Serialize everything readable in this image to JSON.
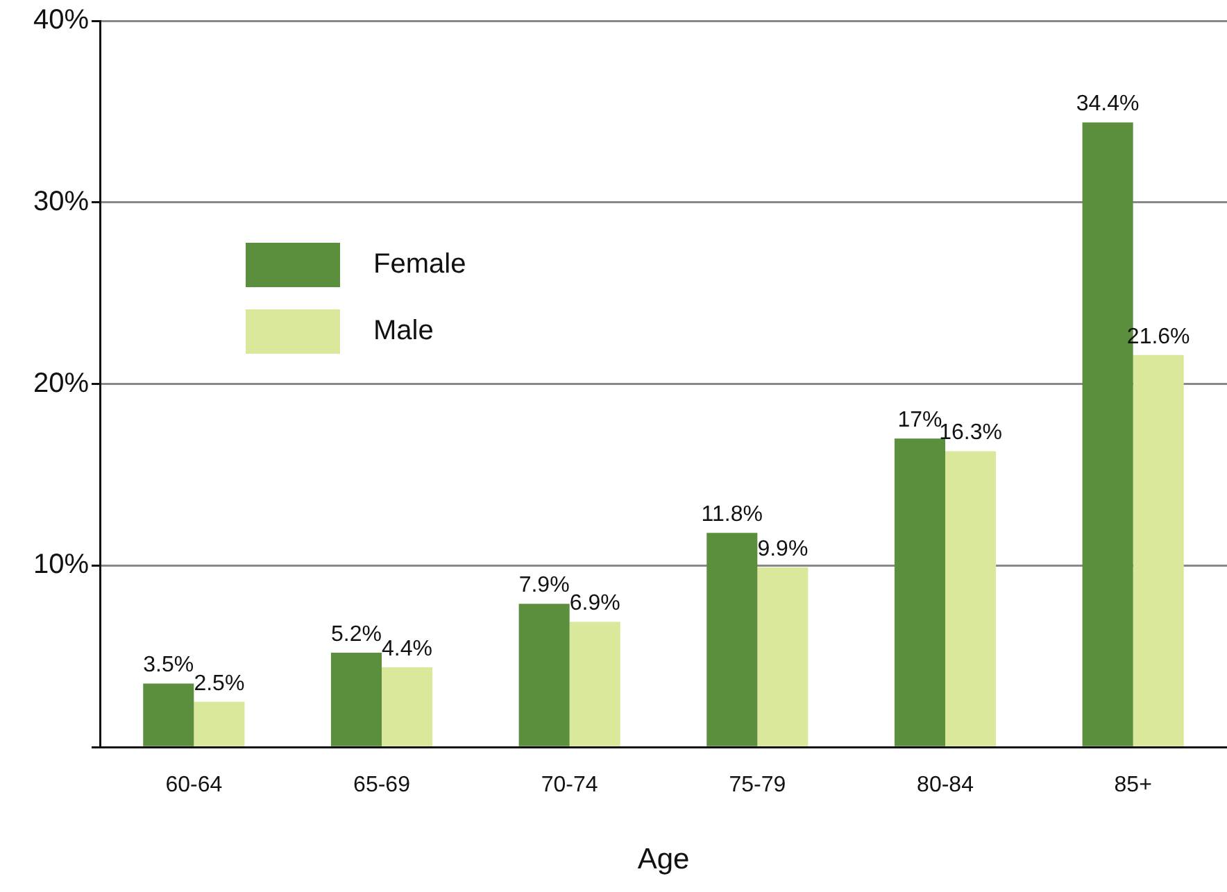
{
  "chart_data": {
    "type": "bar",
    "xlabel": "Age",
    "categories": [
      "60-64",
      "65-69",
      "70-74",
      "75-79",
      "80-84",
      "85+"
    ],
    "series": [
      {
        "name": "Female",
        "color": "#5b8f3e",
        "values": [
          3.5,
          5.2,
          7.9,
          11.8,
          17,
          34.4
        ],
        "value_labels": [
          "3.5%",
          "5.2%",
          "7.9%",
          "11.8%",
          "17%",
          "34.4%"
        ]
      },
      {
        "name": "Male",
        "color": "#d9e89a",
        "values": [
          2.5,
          4.4,
          6.9,
          9.9,
          16.3,
          21.6
        ],
        "value_labels": [
          "2.5%",
          "4.4%",
          "6.9%",
          "9.9%",
          "16.3%",
          "21.6%"
        ]
      }
    ],
    "ylim": [
      0,
      40
    ],
    "yticks": [
      {
        "value": 0,
        "label": null
      },
      {
        "value": 10,
        "label": "10%"
      },
      {
        "value": 20,
        "label": "20%"
      },
      {
        "value": 30,
        "label": "30%"
      },
      {
        "value": 40,
        "label": "40%"
      }
    ],
    "grid": "y",
    "legend": "top left"
  }
}
